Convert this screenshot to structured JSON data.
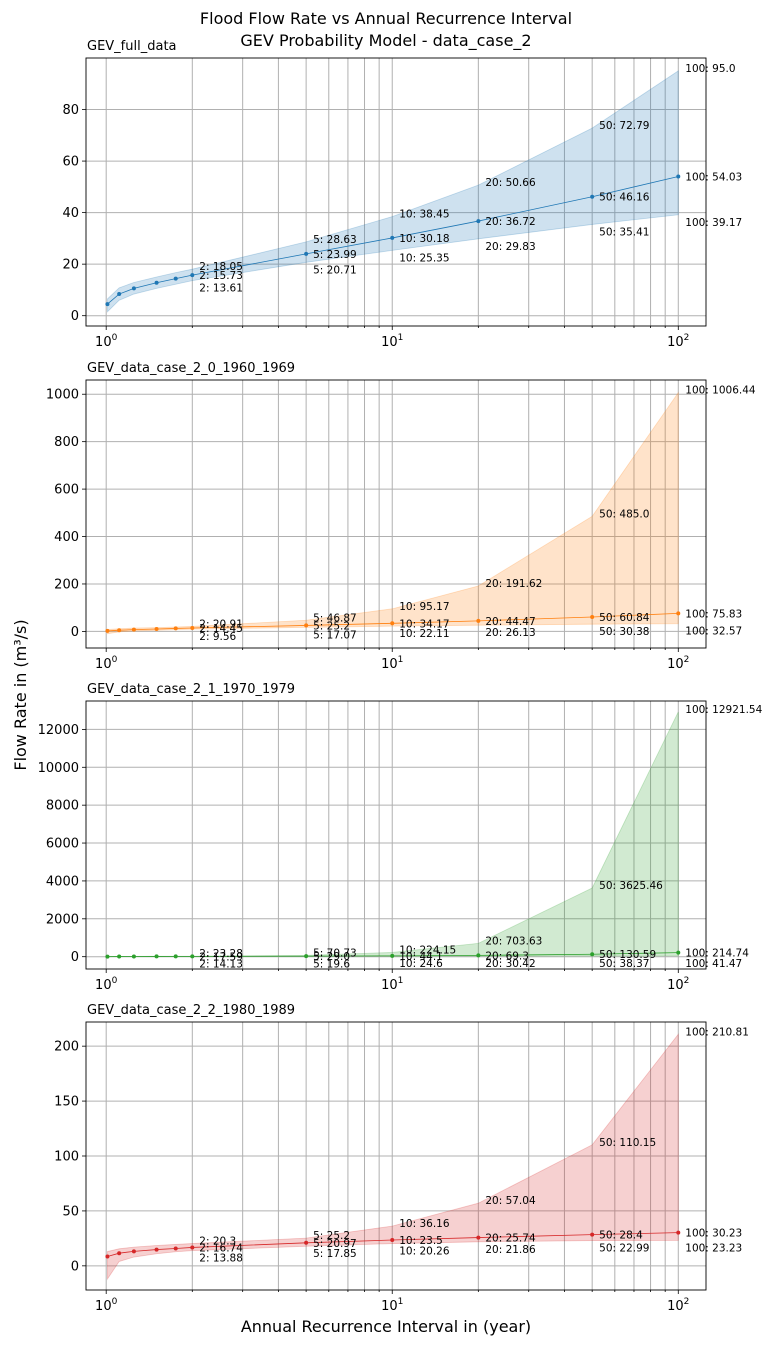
{
  "figure": {
    "title_line1": "Flood Flow Rate vs Annual Recurrence Interval",
    "title_line2": "GEV Probability Model - data_case_2",
    "ylabel": "Flow Rate in (m³/s)",
    "xlabel": "Annual Recurrence Interval in (year)"
  },
  "chart_data": [
    {
      "type": "line",
      "title": "GEV_full_data",
      "x_scale": "log",
      "xlim": [
        0.85,
        125
      ],
      "ylim": [
        -4,
        100
      ],
      "y_ticks": [
        0,
        20,
        40,
        60,
        80
      ],
      "x_tick_labels": [
        "10^0",
        "10^1",
        "10^2"
      ],
      "grid": true,
      "color": "#1f77b4",
      "x": [
        1.01,
        1.11,
        1.25,
        1.5,
        1.75,
        2,
        5,
        10,
        20,
        50,
        100
      ],
      "estimate": [
        4.5,
        8.4,
        10.6,
        12.8,
        14.4,
        15.73,
        23.99,
        30.18,
        36.72,
        46.16,
        54.03
      ],
      "lower": [
        1.5,
        6.0,
        8.4,
        10.6,
        12.2,
        13.61,
        20.71,
        25.35,
        29.83,
        35.41,
        39.17
      ],
      "upper": [
        6.5,
        10.8,
        12.9,
        15.0,
        16.7,
        18.05,
        28.63,
        38.45,
        50.66,
        72.79,
        95.0
      ],
      "labels": {
        "estimate": [
          "2: 15.73",
          "5: 23.99",
          "10: 30.18",
          "20: 36.72",
          "50: 46.16",
          "100: 54.03"
        ],
        "lower": [
          "2: 13.61",
          "5: 20.71",
          "10: 25.35",
          "20: 29.83",
          "50: 35.41",
          "100: 39.17"
        ],
        "upper": [
          "2: 18.05",
          "5: 28.63",
          "10: 38.45",
          "20: 50.66",
          "50: 72.79",
          "100: 95.0"
        ]
      }
    },
    {
      "type": "line",
      "title": "GEV_data_case_2_0_1960_1969",
      "x_scale": "log",
      "xlim": [
        0.85,
        125
      ],
      "ylim": [
        -70,
        1060
      ],
      "y_ticks": [
        0,
        200,
        400,
        600,
        800,
        1000
      ],
      "x_tick_labels": [
        "10^0",
        "10^1",
        "10^2"
      ],
      "grid": true,
      "color": "#ff7f0e",
      "x": [
        1.01,
        1.11,
        1.25,
        1.5,
        1.75,
        2,
        5,
        10,
        20,
        50,
        100
      ],
      "estimate": [
        2,
        5,
        7.5,
        10,
        12.5,
        14.45,
        25.2,
        34.17,
        44.47,
        60.84,
        75.83
      ],
      "lower": [
        -10,
        -2,
        2,
        5,
        7.5,
        9.56,
        17.07,
        22.11,
        26.13,
        30.38,
        32.57
      ],
      "upper": [
        8,
        11,
        14,
        16,
        18.5,
        20.91,
        46.87,
        95.17,
        191.62,
        485.0,
        1006.44
      ],
      "labels": {
        "estimate": [
          "2: 14.45",
          "5: 25.2",
          "10: 34.17",
          "20: 44.47",
          "50: 60.84",
          "100: 75.83"
        ],
        "lower": [
          "2: 9.56",
          "5: 17.07",
          "10: 22.11",
          "20: 26.13",
          "50: 30.38",
          "100: 32.57"
        ],
        "upper": [
          "2: 20.91",
          "5: 46.87",
          "10: 95.17",
          "20: 191.62",
          "50: 485.0",
          "100: 1006.44"
        ]
      }
    },
    {
      "type": "line",
      "title": "GEV_data_case_2_1_1970_1979",
      "x_scale": "log",
      "xlim": [
        0.85,
        125
      ],
      "ylim": [
        -650,
        13500
      ],
      "y_ticks": [
        0,
        2000,
        4000,
        6000,
        8000,
        10000,
        12000
      ],
      "x_tick_labels": [
        "10^0",
        "10^1",
        "10^2"
      ],
      "grid": true,
      "color": "#2ca02c",
      "x": [
        1.01,
        1.11,
        1.25,
        1.5,
        1.75,
        2,
        5,
        10,
        20,
        50,
        100
      ],
      "estimate": [
        3,
        8,
        11,
        14,
        16,
        17.59,
        29.0,
        44.1,
        69.3,
        130.59,
        214.74
      ],
      "lower": [
        0,
        4,
        7,
        10,
        12,
        14.13,
        19.6,
        24.6,
        30.42,
        38.37,
        41.47
      ],
      "upper": [
        8,
        13,
        16,
        19,
        21,
        23.28,
        70.73,
        224.15,
        703.63,
        3625.46,
        12921.54
      ],
      "labels": {
        "estimate": [
          "2: 17.59",
          "5: 29.0",
          "10: 44.1",
          "20: 69.3",
          "50: 130.59",
          "100: 214.74"
        ],
        "lower": [
          "2: 14.13",
          "5: 19.6",
          "10: 24.6",
          "20: 30.42",
          "50: 38.37",
          "100: 41.47"
        ],
        "upper": [
          "2: 23.28",
          "5: 70.73",
          "10: 224.15",
          "20: 703.63",
          "50: 3625.46",
          "100: 12921.54"
        ]
      }
    },
    {
      "type": "line",
      "title": "GEV_data_case_2_2_1980_1989",
      "x_scale": "log",
      "xlim": [
        0.85,
        125
      ],
      "ylim": [
        -22,
        222
      ],
      "y_ticks": [
        0,
        50,
        100,
        150,
        200
      ],
      "x_tick_labels": [
        "10^0",
        "10^1",
        "10^2"
      ],
      "grid": true,
      "color": "#d62728",
      "x": [
        1.01,
        1.11,
        1.25,
        1.5,
        1.75,
        2,
        5,
        10,
        20,
        50,
        100
      ],
      "estimate": [
        8.5,
        11.5,
        13.2,
        14.8,
        15.8,
        16.74,
        20.97,
        23.5,
        25.74,
        28.4,
        30.23
      ],
      "lower": [
        -12,
        4,
        8,
        11,
        12.8,
        13.88,
        17.85,
        20.26,
        21.86,
        22.99,
        23.23
      ],
      "upper": [
        13,
        15.5,
        17,
        18.5,
        19.5,
        20.3,
        25.2,
        36.16,
        57.04,
        110.15,
        210.81
      ],
      "labels": {
        "estimate": [
          "2: 16.74",
          "5: 20.97",
          "10: 23.5",
          "20: 25.74",
          "50: 28.4",
          "100: 30.23"
        ],
        "lower": [
          "2: 13.88",
          "5: 17.85",
          "10: 20.26",
          "20: 21.86",
          "50: 22.99",
          "100: 23.23"
        ],
        "upper": [
          "2: 20.3",
          "5: 25.2",
          "10: 36.16",
          "20: 57.04",
          "50: 110.15",
          "100: 210.81"
        ]
      }
    }
  ]
}
